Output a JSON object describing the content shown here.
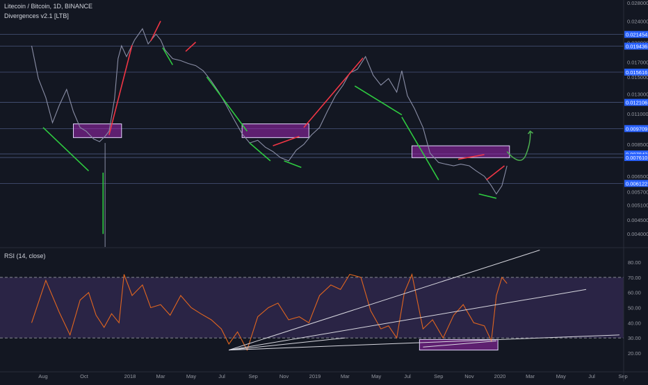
{
  "header": {
    "symbol": "Litecoin / Bitcoin, 1D, BINANCE",
    "indicator": "Divergences v2.1 [LTB]",
    "rsi_title": "RSI (14, close)"
  },
  "colors": {
    "background": "#131722",
    "price_line": "#8a8ea6",
    "bull_div": "#2ecc40",
    "bear_div": "#f23645",
    "rsi_line": "#e2661f",
    "rsi_band": "#7e57c2",
    "zone_fill": "#9c27b0",
    "level_tag": "#2962ff",
    "arrow": "#4caf50"
  },
  "chart_data": [
    {
      "type": "line",
      "name": "price",
      "scale": "log",
      "ylim": [
        0.0038,
        0.028
      ],
      "y_ticks": [
        "0.028000",
        "0.024000",
        "0.020000",
        "0.017000",
        "0.015000",
        "0.013000",
        "0.011000",
        "0.008500",
        "0.006500",
        "0.005700",
        "0.005100",
        "0.004500",
        "0.004000"
      ],
      "x_ticks": [
        "Aug",
        "Oct",
        "2018",
        "Mar",
        "May",
        "Jul",
        "Sep",
        "Nov",
        "2019",
        "Mar",
        "May",
        "Jul",
        "Sep",
        "Nov",
        "2020",
        "Mar",
        "May",
        "Jul",
        "Sep"
      ],
      "xlim": [
        "2017-07-01",
        "2020-10-01"
      ],
      "series": [
        {
          "x": [
            "2017-07-15",
            "2017-07-25",
            "2017-08-05",
            "2017-08-15",
            "2017-08-25",
            "2017-09-05",
            "2017-09-15",
            "2017-09-25",
            "2017-10-05",
            "2017-10-20",
            "2017-11-01",
            "2017-11-12",
            "2017-11-20",
            "2017-12-01",
            "2017-12-08",
            "2017-12-15",
            "2017-12-25",
            "2018-01-10",
            "2018-01-25",
            "2018-02-05",
            "2018-02-20",
            "2018-03-01",
            "2018-03-10",
            "2018-03-25",
            "2018-04-10",
            "2018-04-25",
            "2018-05-10",
            "2018-05-25",
            "2018-06-10",
            "2018-06-25",
            "2018-07-10",
            "2018-07-25",
            "2018-08-10",
            "2018-08-25",
            "2018-09-10",
            "2018-09-25",
            "2018-10-10",
            "2018-10-25",
            "2018-11-10",
            "2018-11-25",
            "2018-12-10",
            "2018-12-25",
            "2019-01-10",
            "2019-01-25",
            "2019-02-10",
            "2019-02-25",
            "2019-03-10",
            "2019-03-25",
            "2019-04-10",
            "2019-04-25",
            "2019-05-10",
            "2019-05-25",
            "2019-06-10",
            "2019-06-20",
            "2019-07-01",
            "2019-07-15",
            "2019-08-01",
            "2019-08-15",
            "2019-09-01",
            "2019-09-15",
            "2019-10-01",
            "2019-10-15",
            "2019-11-01",
            "2019-11-15",
            "2019-12-01",
            "2019-12-15",
            "2019-12-25",
            "2020-01-05",
            "2020-01-15"
          ],
          "values": [
            0.0195,
            0.0148,
            0.0126,
            0.0102,
            0.0118,
            0.0135,
            0.0112,
            0.0098,
            0.0095,
            0.0089,
            0.0087,
            0.0091,
            0.0095,
            0.0125,
            0.0175,
            0.0195,
            0.0178,
            0.0205,
            0.0225,
            0.0198,
            0.0215,
            0.0205,
            0.0188,
            0.0175,
            0.0172,
            0.0168,
            0.0165,
            0.0158,
            0.0145,
            0.0132,
            0.0118,
            0.0105,
            0.0093,
            0.0086,
            0.0088,
            0.0083,
            0.008,
            0.0076,
            0.0074,
            0.0081,
            0.0085,
            0.0092,
            0.0098,
            0.0112,
            0.0128,
            0.014,
            0.0155,
            0.016,
            0.0178,
            0.0152,
            0.014,
            0.0148,
            0.0132,
            0.0158,
            0.0128,
            0.0115,
            0.0098,
            0.0079,
            0.0073,
            0.0072,
            0.0071,
            0.0072,
            0.0071,
            0.0068,
            0.0065,
            0.006,
            0.0056,
            0.006,
            0.0071
          ]
        }
      ],
      "horizontal_levels": [
        "0.021454",
        "0.019436",
        "0.015616",
        "0.012106",
        "0.009709",
        "0.007842",
        "0.007610",
        "0.006122"
      ],
      "overlay_labels": [
        "0.028000",
        "0.024000",
        "0.020000",
        "0.017000",
        "0.015000",
        "0.013000",
        "0.011000",
        "0.008500",
        "0.006500",
        "0.005700",
        "0.005100",
        "0.004500",
        "0.004000"
      ]
    },
    {
      "type": "line",
      "name": "rsi",
      "ylim": [
        10,
        90
      ],
      "y_ticks": [
        "80.00",
        "70.00",
        "60.00",
        "50.00",
        "40.00",
        "30.00",
        "20.00"
      ],
      "bands": [
        30,
        70
      ],
      "series": [
        {
          "x": [
            "2017-07-15",
            "2017-08-05",
            "2017-08-25",
            "2017-09-10",
            "2017-09-25",
            "2017-10-10",
            "2017-10-25",
            "2017-11-10",
            "2017-11-25",
            "2017-12-10",
            "2017-12-20",
            "2018-01-05",
            "2018-01-25",
            "2018-02-10",
            "2018-03-01",
            "2018-03-20",
            "2018-04-10",
            "2018-05-01",
            "2018-05-20",
            "2018-06-10",
            "2018-06-30",
            "2018-07-15",
            "2018-08-01",
            "2018-08-20",
            "2018-09-10",
            "2018-10-01",
            "2018-10-20",
            "2018-11-10",
            "2018-12-01",
            "2018-12-20",
            "2019-01-10",
            "2019-02-01",
            "2019-02-20",
            "2019-03-10",
            "2019-04-01",
            "2019-04-20",
            "2019-05-10",
            "2019-05-25",
            "2019-06-10",
            "2019-06-25",
            "2019-07-10",
            "2019-08-01",
            "2019-08-20",
            "2019-09-10",
            "2019-10-01",
            "2019-10-20",
            "2019-11-10",
            "2019-12-01",
            "2019-12-15",
            "2019-12-25",
            "2020-01-05",
            "2020-01-15"
          ],
          "values": [
            40,
            68,
            47,
            32,
            55,
            60,
            45,
            37,
            46,
            40,
            72,
            58,
            65,
            50,
            52,
            45,
            58,
            50,
            46,
            42,
            36,
            26,
            34,
            22,
            44,
            50,
            53,
            42,
            44,
            40,
            58,
            65,
            62,
            72,
            70,
            48,
            36,
            38,
            30,
            60,
            72,
            36,
            42,
            30,
            45,
            52,
            40,
            38,
            28,
            58,
            70,
            66
          ]
        }
      ]
    }
  ],
  "annotations": {
    "bull_divergence_lines": 9,
    "bear_divergence_lines": 6,
    "zones": 4,
    "rsi_trendlines": 4
  }
}
